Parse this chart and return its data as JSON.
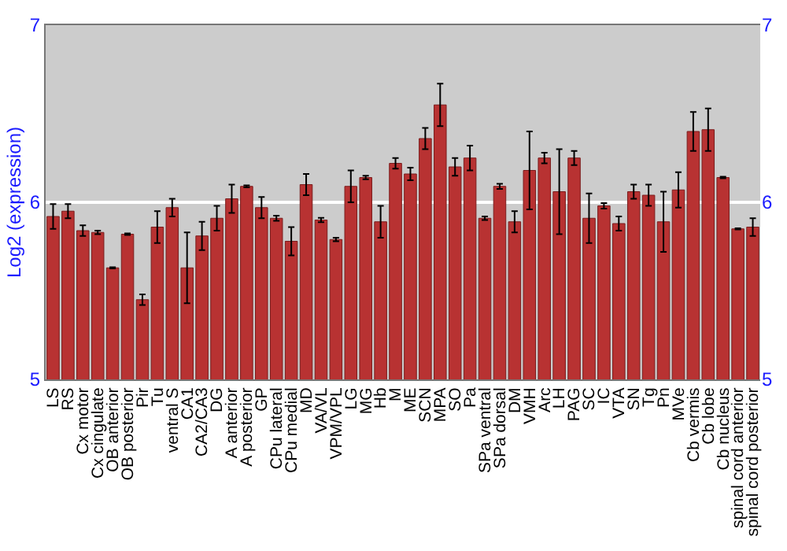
{
  "chart_data": {
    "type": "bar",
    "ylabel": "Log2 (expression)",
    "categories": [
      "LS",
      "RS",
      "Cx motor",
      "Cx cingulate",
      "OB anterior",
      "OB posterior",
      "Pir",
      "Tu",
      "ventral S",
      "CA1",
      "CA2/CA3",
      "DG",
      "A anterior",
      "A posterior",
      "GP",
      "CPu lateral",
      "CPu medial",
      "MD",
      "VA/VL",
      "VPM/VPL",
      "LG",
      "MG",
      "Hb",
      "M",
      "ME",
      "SCN",
      "MPA",
      "SO",
      "Pa",
      "SPa ventral",
      "SPa dorsal",
      "DM",
      "VMH",
      "Arc",
      "LH",
      "PAG",
      "SC",
      "IC",
      "VTA",
      "SN",
      "Tg",
      "Pn",
      "MVe",
      "Cb vermis",
      "Cb lobe",
      "Cb nucleus",
      "spinal cord anterior",
      "spinal cord posterior"
    ],
    "values": [
      5.92,
      5.95,
      5.84,
      5.83,
      5.63,
      5.82,
      5.45,
      5.86,
      5.97,
      5.63,
      5.81,
      5.91,
      6.02,
      6.09,
      5.97,
      5.91,
      5.78,
      6.1,
      5.9,
      5.79,
      6.09,
      6.14,
      5.89,
      6.22,
      6.16,
      6.36,
      6.55,
      6.2,
      6.25,
      5.91,
      6.09,
      5.89,
      6.18,
      6.25,
      6.06,
      6.25,
      5.91,
      5.98,
      5.88,
      6.06,
      6.04,
      5.89,
      6.07,
      6.4,
      6.41,
      6.14,
      5.85,
      5.86
    ],
    "errors": [
      0.07,
      0.04,
      0.03,
      0.01,
      0.003,
      0.005,
      0.03,
      0.09,
      0.05,
      0.2,
      0.08,
      0.07,
      0.08,
      0.005,
      0.06,
      0.015,
      0.08,
      0.06,
      0.012,
      0.01,
      0.09,
      0.01,
      0.09,
      0.03,
      0.035,
      0.06,
      0.12,
      0.05,
      0.07,
      0.01,
      0.015,
      0.06,
      0.22,
      0.03,
      0.24,
      0.04,
      0.14,
      0.015,
      0.04,
      0.04,
      0.06,
      0.17,
      0.1,
      0.11,
      0.12,
      0.005,
      0.003,
      0.05
    ],
    "color": "#b83232",
    "ylim": [
      5,
      7
    ],
    "yticks": [
      5,
      6,
      7
    ],
    "y2lim": [
      5,
      7
    ],
    "y2ticks": [
      5,
      6,
      7
    ],
    "grid": "y"
  }
}
